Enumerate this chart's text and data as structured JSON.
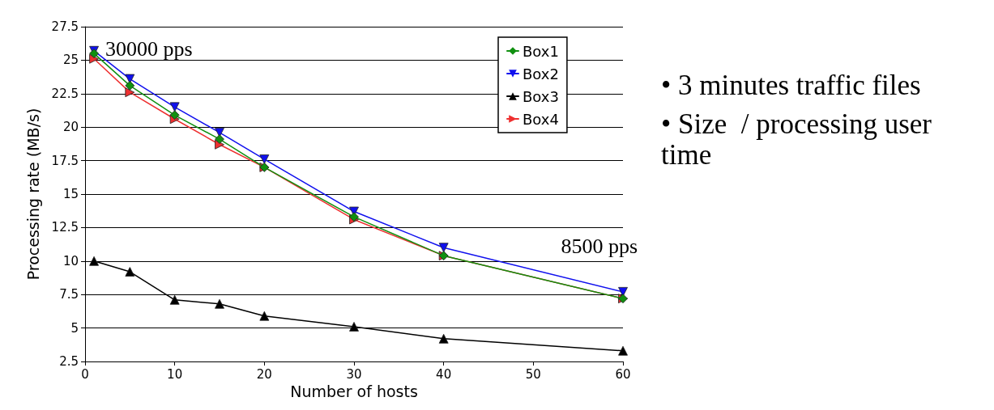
{
  "chart_data": {
    "type": "line",
    "xlabel": "Number of hosts",
    "ylabel": "Processing rate (MB/s)",
    "x": [
      1,
      5,
      10,
      15,
      20,
      30,
      40,
      60
    ],
    "series": [
      {
        "name": "Box1",
        "color": "#109010",
        "marker": "diamond",
        "values": [
          25.5,
          23.1,
          20.9,
          19.1,
          17.0,
          13.3,
          10.4,
          7.2
        ]
      },
      {
        "name": "Box2",
        "color": "#1010ee",
        "marker": "triangle-down",
        "values": [
          25.7,
          23.6,
          21.5,
          19.6,
          17.6,
          13.7,
          11.0,
          7.7
        ]
      },
      {
        "name": "Box3",
        "color": "#000000",
        "marker": "triangle",
        "values": [
          10.0,
          9.2,
          7.1,
          6.8,
          5.9,
          5.1,
          4.2,
          3.3
        ]
      },
      {
        "name": "Box4",
        "color": "#ee3030",
        "marker": "triangle-right",
        "values": [
          25.1,
          22.6,
          20.6,
          18.7,
          17.0,
          13.1,
          10.4,
          7.2
        ]
      }
    ],
    "xlim": [
      0,
      60
    ],
    "xticks": [
      0,
      10,
      20,
      30,
      40,
      50,
      60
    ],
    "ylim": [
      2.5,
      27.5
    ],
    "yticks": [
      2.5,
      5,
      7.5,
      10,
      12.5,
      15,
      17.5,
      20,
      22.5,
      25,
      27.5
    ],
    "grid": "y",
    "legend": "top right",
    "line_style": "solid",
    "annotations": [
      {
        "text": "30000 pps",
        "x": 1,
        "y": 25.7
      },
      {
        "text": "8500 pps",
        "x": 60,
        "y": 7.7
      },
      "• 3 minutes traffic files",
      "• Size  / processing user time"
    ]
  }
}
